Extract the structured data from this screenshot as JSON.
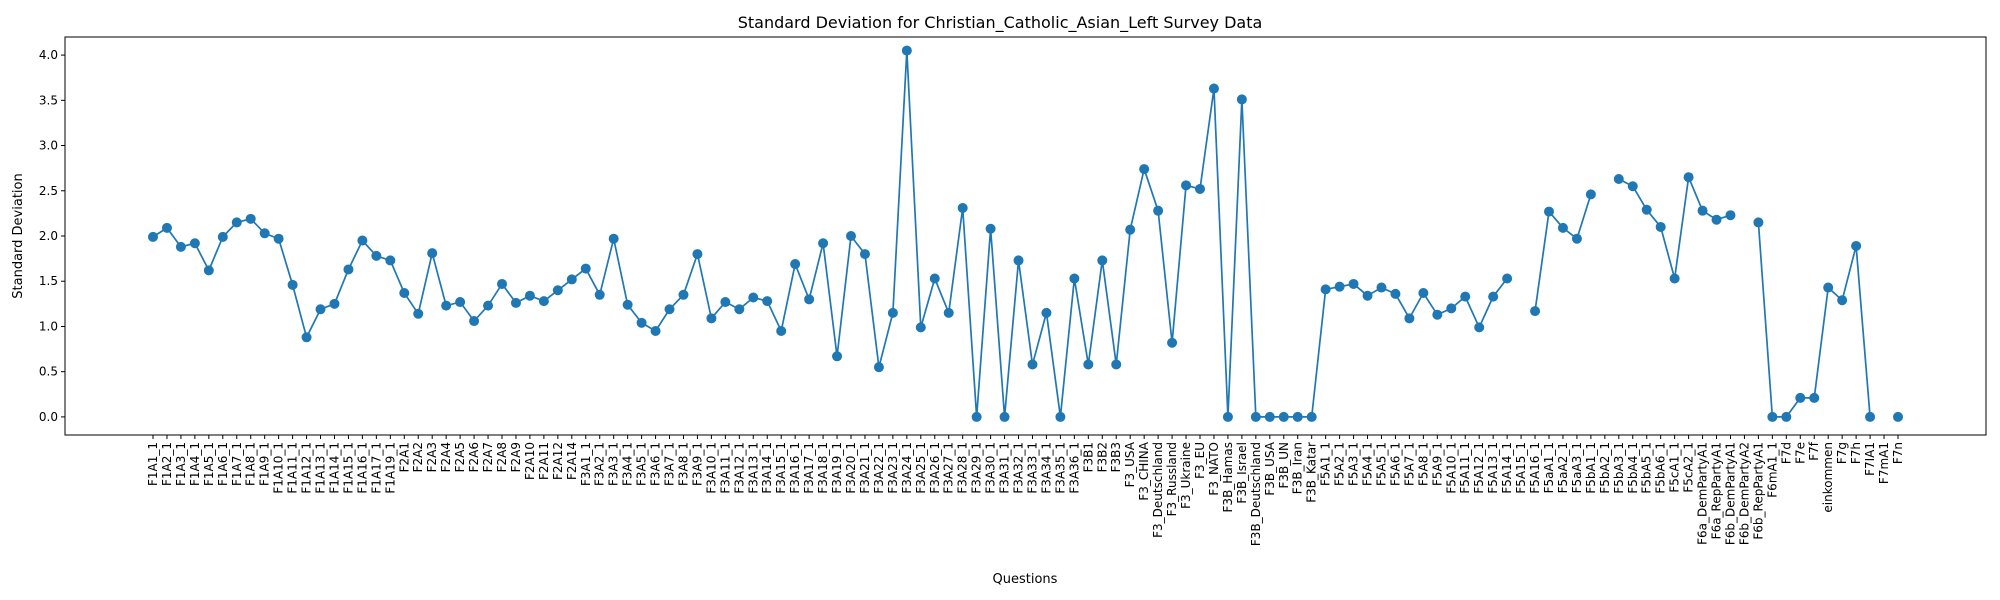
{
  "chart_data": {
    "type": "line",
    "title": "Standard Deviation for Christian_Catholic_Asian_Left Survey Data",
    "xlabel": "Questions",
    "ylabel": "Standard Deviation",
    "ylim": [
      -0.2,
      4.2
    ],
    "yticks": [
      0.0,
      0.5,
      1.0,
      1.5,
      2.0,
      2.5,
      3.0,
      3.5,
      4.0
    ],
    "grid": false,
    "color": "#1f77b4",
    "categories": [
      "F1A1_1",
      "F1A2_1",
      "F1A3_1",
      "F1A4_1",
      "F1A5_1",
      "F1A6_1",
      "F1A7_1",
      "F1A8_1",
      "F1A9_1",
      "F1A10_1",
      "F1A11_1",
      "F1A12_1",
      "F1A13_1",
      "F1A14_1",
      "F1A15_1",
      "F1A16_1",
      "F1A17_1",
      "F1A19_1",
      "F2A1",
      "F2A2",
      "F2A3",
      "F2A4",
      "F2A5",
      "F2A6",
      "F2A7",
      "F2A8",
      "F2A9",
      "F2A10",
      "F2A11",
      "F2A12",
      "F2A14",
      "F3A1_1",
      "F3A2_1",
      "F3A3_1",
      "F3A4_1",
      "F3A5_1",
      "F3A6_1",
      "F3A7_1",
      "F3A8_1",
      "F3A9_1",
      "F3A10_1",
      "F3A11_1",
      "F3A12_1",
      "F3A13_1",
      "F3A14_1",
      "F3A15_1",
      "F3A16_1",
      "F3A17_1",
      "F3A18_1",
      "F3A19_1",
      "F3A20_1",
      "F3A21_1",
      "F3A22_1",
      "F3A23_1",
      "F3A24_1",
      "F3A25_1",
      "F3A26_1",
      "F3A27_1",
      "F3A28_1",
      "F3A29_1",
      "F3A30_1",
      "F3A31_1",
      "F3A32_1",
      "F3A33_1",
      "F3A34_1",
      "F3A35_1",
      "F3A36_1",
      "F3B1",
      "F3B2",
      "F3B3",
      "F3_USA",
      "F3_CHINA",
      "F3_Deutschland",
      "F3_Russland",
      "F3_Ukraine",
      "F3_EU",
      "F3_NATO",
      "F3B_Hamas",
      "F3B_Israel",
      "F3B_Deutschland",
      "F3B_USA",
      "F3B_UN",
      "F3B_Iran",
      "F3B_Katar",
      "F5A1_1",
      "F5A2_1",
      "F5A3_1",
      "F5A4_1",
      "F5A5_1",
      "F5A6_1",
      "F5A7_1",
      "F5A8_1",
      "F5A9_1",
      "F5A10_1",
      "F5A11_1",
      "F5A12_1",
      "F5A13_1",
      "F5A14_1",
      "F5A15_1",
      "F5A16_1",
      "F5aA1_1",
      "F5aA2_1",
      "F5aA3_1",
      "F5bA1_1",
      "F5bA2_1",
      "F5bA3_1",
      "F5bA4_1",
      "F5bA5_1",
      "F5bA6_1",
      "F5cA1_1",
      "F5cA2_1",
      "F6a_DemPartyA1",
      "F6a_RepPartyA1",
      "F6b_DemPartyA1",
      "F6b_DemPartyA2",
      "F6b_RepPartyA1",
      "F6mA1_1",
      "F7d",
      "F7e",
      "F7f",
      "einkommen",
      "F7g",
      "F7h",
      "F7IA1",
      "F7mA1",
      "F7n"
    ],
    "values": [
      1.99,
      2.09,
      1.88,
      1.92,
      1.62,
      1.99,
      2.15,
      2.19,
      2.03,
      1.97,
      1.46,
      0.88,
      1.19,
      1.25,
      1.63,
      1.95,
      1.78,
      1.73,
      1.37,
      1.14,
      1.81,
      1.23,
      1.27,
      1.06,
      1.23,
      1.47,
      1.26,
      1.34,
      1.28,
      1.4,
      1.52,
      1.64,
      1.35,
      1.97,
      1.24,
      1.04,
      0.95,
      1.19,
      1.35,
      1.8,
      1.09,
      1.27,
      1.19,
      1.32,
      1.28,
      0.95,
      1.69,
      1.3,
      1.92,
      0.67,
      2.0,
      1.8,
      0.55,
      1.15,
      4.05,
      0.99,
      1.53,
      1.15,
      2.31,
      0.0,
      2.08,
      0.0,
      1.73,
      0.58,
      1.15,
      0.0,
      1.53,
      0.58,
      1.73,
      0.58,
      2.07,
      2.74,
      2.28,
      0.82,
      2.56,
      2.52,
      3.63,
      0.0,
      3.51,
      0.0,
      0.0,
      0.0,
      0.0,
      0.0,
      1.41,
      1.44,
      1.47,
      1.34,
      1.43,
      1.36,
      1.09,
      1.37,
      1.13,
      1.2,
      1.33,
      0.99,
      1.33,
      1.53,
      null,
      1.17,
      2.27,
      2.09,
      1.97,
      2.46,
      null,
      2.63,
      2.55,
      2.29,
      2.1,
      1.53,
      2.65,
      2.28,
      2.18,
      2.23,
      null,
      2.15,
      0.0,
      0.0,
      0.21,
      0.21,
      1.43,
      1.29,
      1.89,
      0.0,
      null,
      0.0
    ]
  }
}
